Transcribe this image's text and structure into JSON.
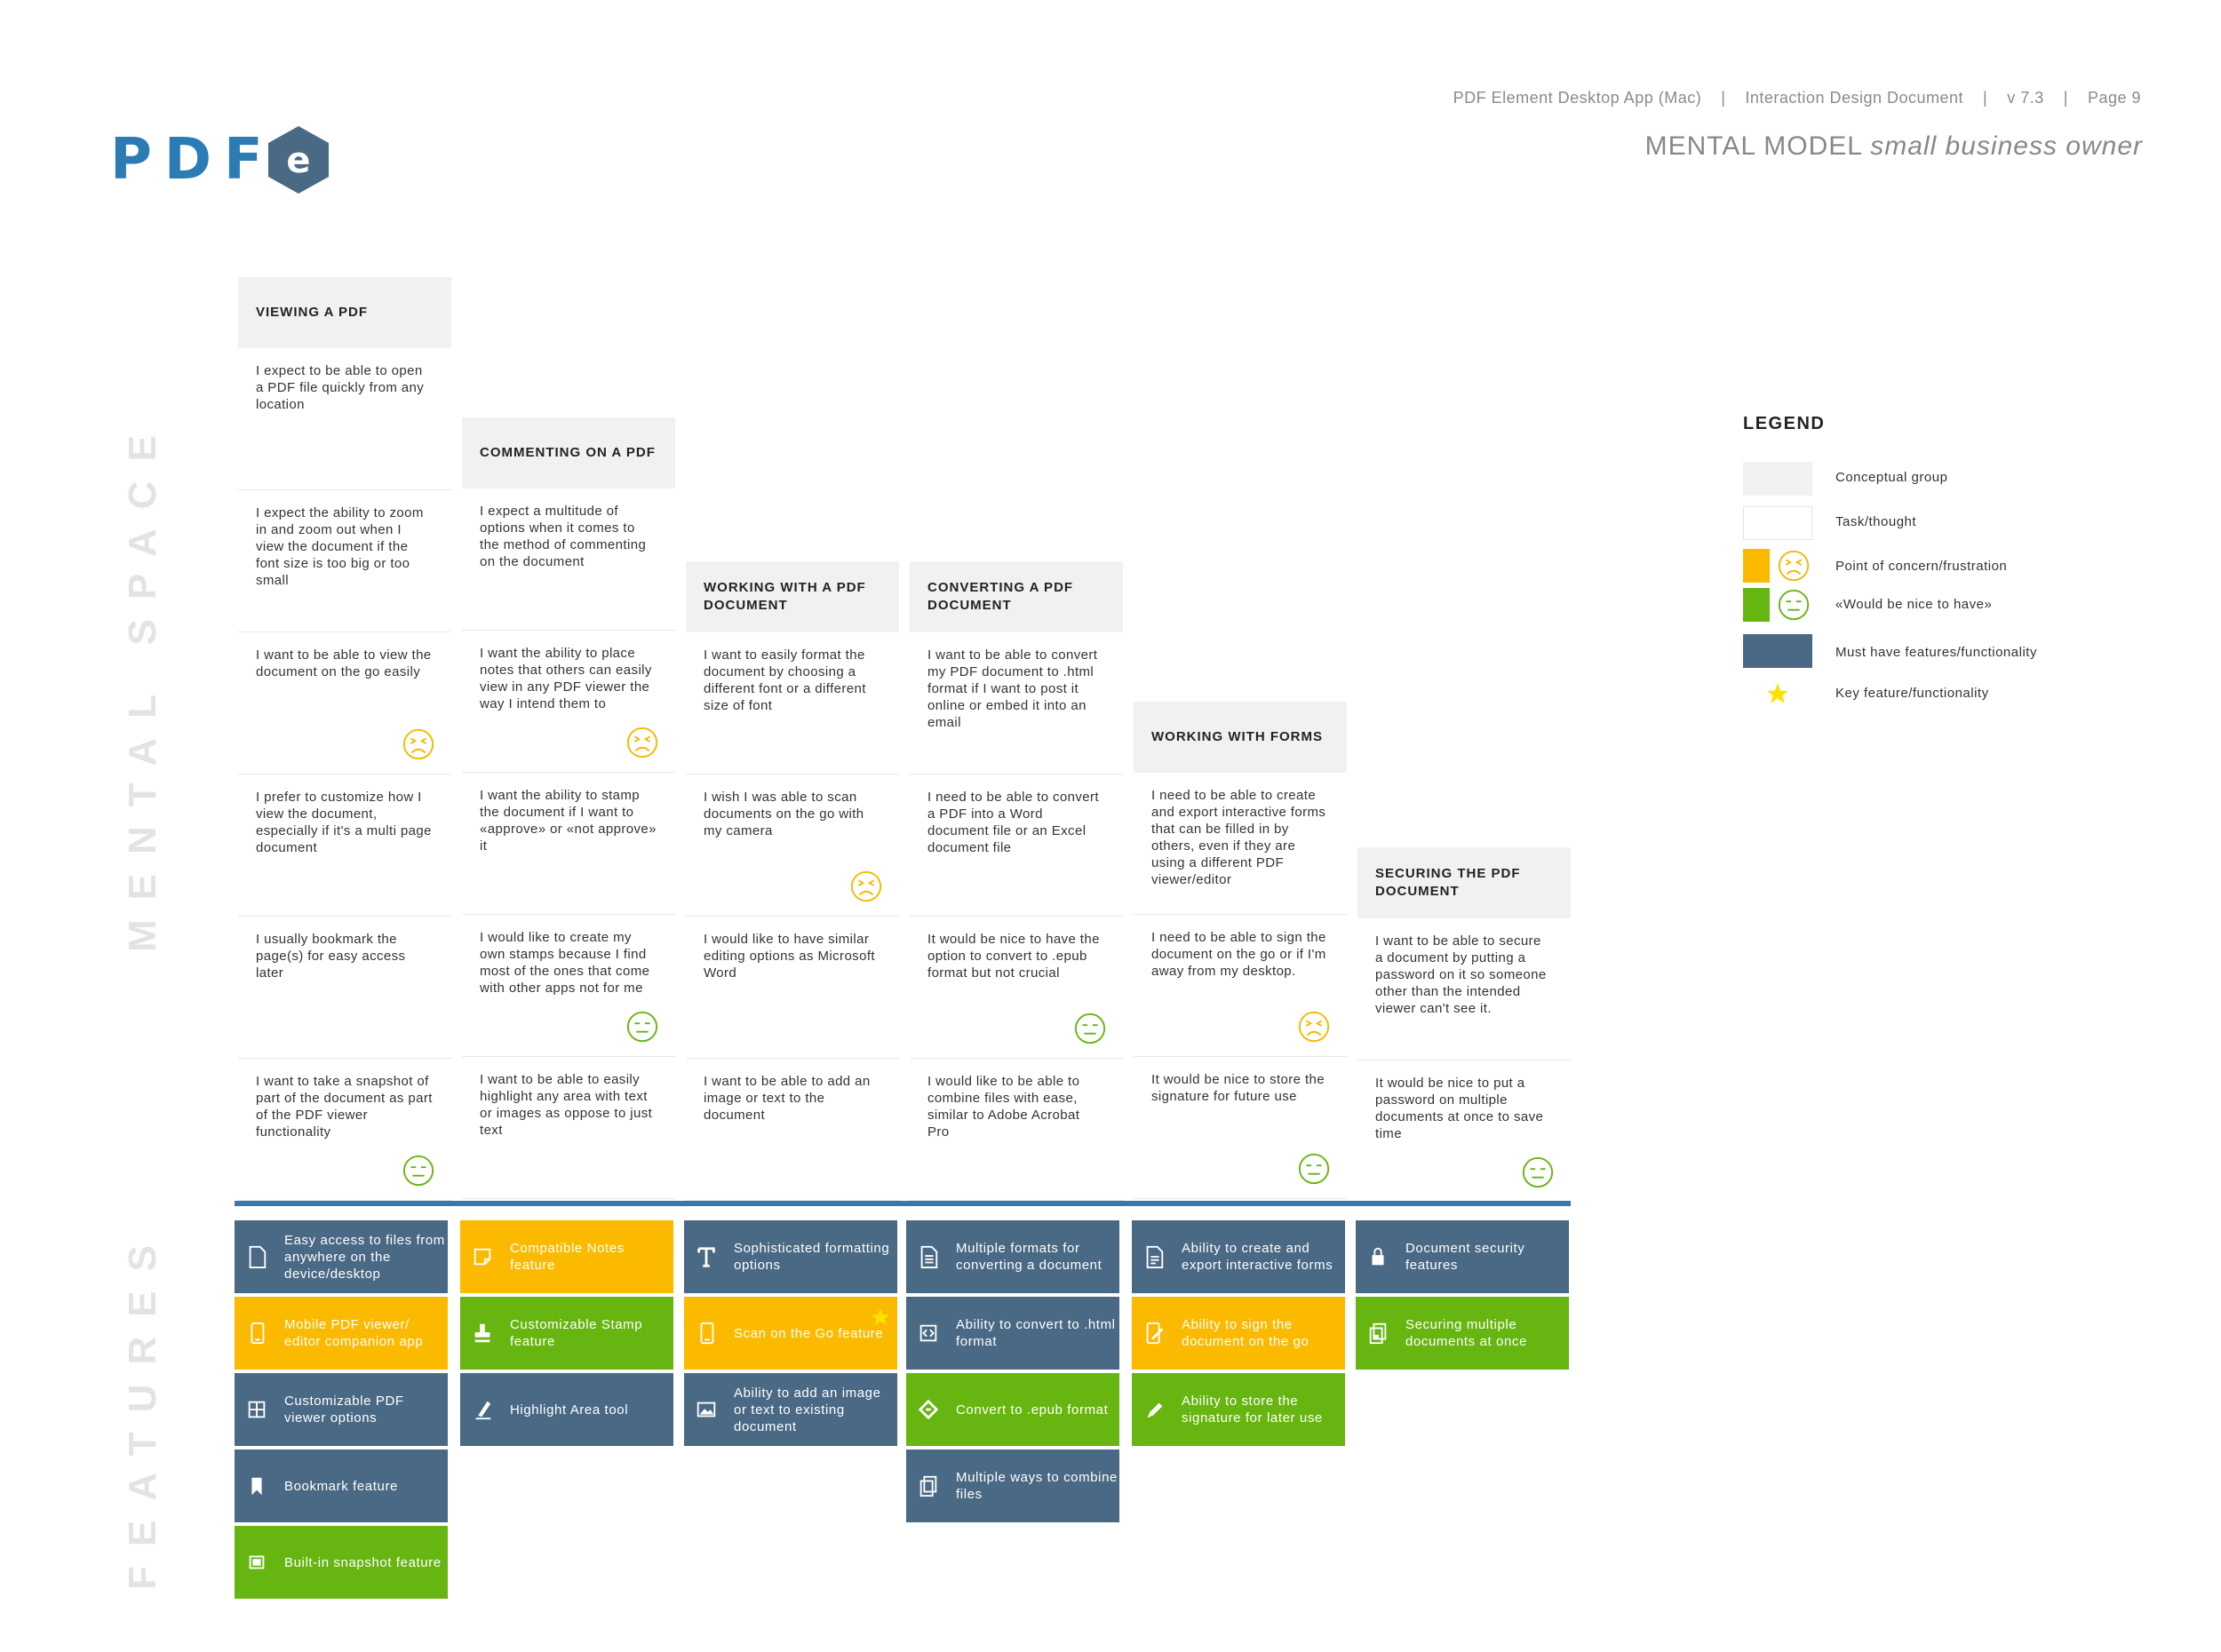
{
  "header": {
    "logo_text": "PDF",
    "logo_badge": "e",
    "app_name": "PDF Element Desktop App (Mac)",
    "doc_type": "Interaction Design Document",
    "version": "v 7.3",
    "page": "Page 9",
    "separator": "|",
    "title_main": "MENTAL MODEL",
    "title_sub": "small business owner"
  },
  "side_labels": {
    "mental": "MENTAL SPACE",
    "features": "FEATURES"
  },
  "colors": {
    "blue_feature": "#4a6984",
    "yellow_feature": "#fbba00",
    "green_feature": "#67b510",
    "divider": "#3a76b1",
    "conceptual": "#f1f1f1"
  },
  "columns": [
    {
      "heading": "VIEWING A PDF",
      "cells": [
        {
          "text": "I expect to be able to open a PDF file quickly from any location",
          "face": ""
        },
        {
          "text": "I expect the ability to zoom in and zoom out when I view the document if the font size is too big or too small",
          "face": ""
        },
        {
          "text": "I want to be able to view the document on the go easily",
          "face": "concern"
        },
        {
          "text": "I prefer to customize how I view the document, especially if it's a multi page document",
          "face": ""
        },
        {
          "text": "I usually bookmark the page(s) for easy access later",
          "face": ""
        },
        {
          "text": "I want to take a snapshot of part of the document as part of the PDF viewer functionality",
          "face": "nice"
        }
      ]
    },
    {
      "heading": "COMMENTING ON A PDF",
      "cells": [
        {
          "text": "I expect a multitude of options when it comes to the method of commenting on the document",
          "face": ""
        },
        {
          "text": "I want the ability to place notes that others can easily view in any PDF viewer the way I intend them to",
          "face": "concern"
        },
        {
          "text": "I want the ability to stamp the document if I want to «approve» or «not approve» it",
          "face": ""
        },
        {
          "text": "I would like to create my own stamps because I find most of the ones that come with other apps not for me",
          "face": "nice"
        },
        {
          "text": "I want to be able to easily highlight any area with text or images as oppose to just text",
          "face": ""
        }
      ]
    },
    {
      "heading": "WORKING WITH A PDF DOCUMENT",
      "cells": [
        {
          "text": "I want to easily format the document by choosing a different font or a different size of font",
          "face": ""
        },
        {
          "text": "I wish I was able to scan documents on the go with my camera",
          "face": "concern"
        },
        {
          "text": "I would like to have similar editing options as Microsoft Word",
          "face": ""
        },
        {
          "text": "I want to be able to add an image or text to the document",
          "face": ""
        }
      ]
    },
    {
      "heading": "CONVERTING A PDF DOCUMENT",
      "cells": [
        {
          "text": "I want to be able to convert my PDF document to .html format if I want to post it online or embed it into an email",
          "face": ""
        },
        {
          "text": "I need to be able to convert a PDF into a Word document file or an Excel document file",
          "face": ""
        },
        {
          "text": "It would be nice to have the option to convert to .epub format but not crucial",
          "face": "nice"
        },
        {
          "text": "I would like to be able to combine files with ease, similar to Adobe Acrobat Pro",
          "face": ""
        }
      ]
    },
    {
      "heading": "WORKING WITH FORMS",
      "cells": [
        {
          "text": "I need to be able to create and export interactive forms that can be filled in by others, even if they are using a different PDF viewer/editor",
          "face": ""
        },
        {
          "text": "I need to be able to sign the document on the go or if I'm away from my desktop.",
          "face": "concern"
        },
        {
          "text": "It would be nice to store the signature for future use",
          "face": "nice"
        }
      ]
    },
    {
      "heading": "SECURING THE PDF DOCUMENT",
      "cells": [
        {
          "text": "I want to be able to secure a document by putting a password on it so someone other than the intended viewer can't see it.",
          "face": ""
        },
        {
          "text": "It would be nice to put a password on multiple documents at once to save time",
          "face": "nice"
        }
      ]
    }
  ],
  "features": [
    [
      {
        "text": "Easy access to files from anywhere on the device/desktop",
        "color": "blue",
        "icon": "file-icon",
        "star": false
      },
      {
        "text": "Mobile PDF viewer/ editor companion app",
        "color": "yellow",
        "icon": "phone-icon",
        "star": false
      },
      {
        "text": "Customizable PDF viewer options",
        "color": "blue",
        "icon": "grid-icon",
        "star": false
      },
      {
        "text": "Bookmark feature",
        "color": "blue",
        "icon": "bookmark-icon",
        "star": false
      },
      {
        "text": "Built-in snapshot feature",
        "color": "green",
        "icon": "snapshot-icon",
        "star": false
      }
    ],
    [
      {
        "text": "Compatible Notes feature",
        "color": "yellow",
        "icon": "note-icon",
        "star": false
      },
      {
        "text": "Customizable Stamp feature",
        "color": "green",
        "icon": "stamp-icon",
        "star": false
      },
      {
        "text": "Highlight Area tool",
        "color": "blue",
        "icon": "highlighter-icon",
        "star": false
      }
    ],
    [
      {
        "text": "Sophisticated formatting options",
        "color": "blue",
        "icon": "text-format-icon",
        "star": false
      },
      {
        "text": "Scan on the Go feature",
        "color": "yellow",
        "icon": "phone-icon",
        "star": true
      },
      {
        "text": "Ability to add an image or text to existing document",
        "color": "blue",
        "icon": "image-icon",
        "star": false
      }
    ],
    [
      {
        "text": "Multiple formats for converting a document",
        "color": "blue",
        "icon": "document-icon",
        "star": false
      },
      {
        "text": "Ability to convert to .html format",
        "color": "blue",
        "icon": "code-icon",
        "star": false
      },
      {
        "text": "Convert to .epub format",
        "color": "green",
        "icon": "epub-icon",
        "star": false
      },
      {
        "text": "Multiple ways to combine files",
        "color": "blue",
        "icon": "copy-icon",
        "star": false
      }
    ],
    [
      {
        "text": "Ability to create and export interactive forms",
        "color": "blue",
        "icon": "form-icon",
        "star": false
      },
      {
        "text": "Ability to sign the document on the go",
        "color": "yellow",
        "icon": "mobile-sign-icon",
        "star": false
      },
      {
        "text": "Ability to store the signature for later use",
        "color": "green",
        "icon": "pen-icon",
        "star": false
      }
    ],
    [
      {
        "text": "Document security features",
        "color": "blue",
        "icon": "lock-icon",
        "star": false
      },
      {
        "text": "Securing multiple documents at once",
        "color": "green",
        "icon": "lock-copy-icon",
        "star": false
      }
    ]
  ],
  "legend": {
    "title": "LEGEND",
    "items": [
      "Conceptual group",
      "Task/thought",
      "Point of concern/frustration",
      "«Would be nice to have»",
      "Must have features/functionality",
      "Key feature/functionality"
    ]
  }
}
